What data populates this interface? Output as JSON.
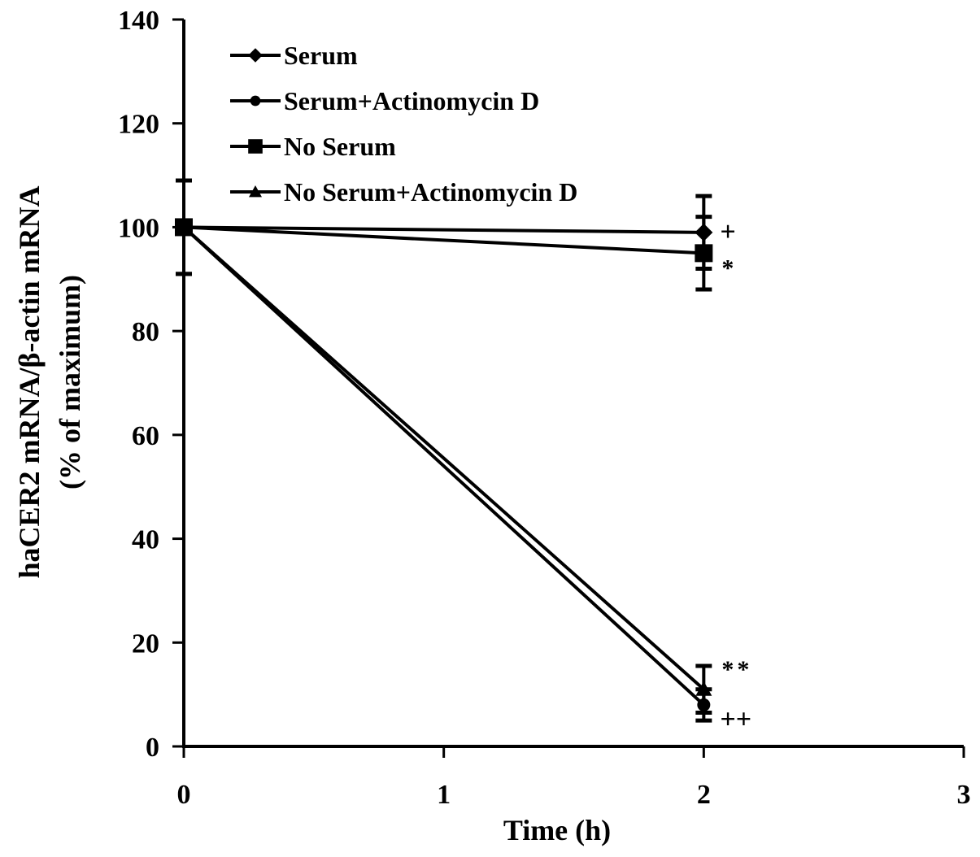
{
  "chart_data": {
    "type": "line",
    "title": "",
    "xlabel": "Time (h)",
    "ylabel": "haCER2 mRNA/β-actin mRNA",
    "ylabel2": "(% of maximum)",
    "xlim": [
      0,
      3
    ],
    "ylim": [
      0,
      140
    ],
    "xticks": [
      0,
      1,
      2,
      3
    ],
    "yticks": [
      0,
      20,
      40,
      60,
      80,
      100,
      120,
      140
    ],
    "grid": false,
    "legend_position": "top-left",
    "series": [
      {
        "name": "Serum",
        "marker": "diamond",
        "x": [
          0,
          2
        ],
        "y": [
          100,
          99
        ],
        "err": [
          9,
          7
        ]
      },
      {
        "name": "Serum+Actinomycin D",
        "marker": "circle",
        "x": [
          0,
          2
        ],
        "y": [
          100,
          8
        ],
        "err": [
          9,
          3
        ]
      },
      {
        "name": "No Serum",
        "marker": "square",
        "x": [
          0,
          2
        ],
        "y": [
          100,
          95
        ],
        "err": [
          1,
          7
        ]
      },
      {
        "name": "No Serum+Actinomycin D",
        "marker": "triangle",
        "x": [
          0,
          2
        ],
        "y": [
          100,
          11
        ],
        "err": [
          1,
          4.5
        ]
      }
    ],
    "annotations": [
      {
        "text": "+",
        "x": 2,
        "y": 99
      },
      {
        "text": "*",
        "x": 2,
        "y": 94
      },
      {
        "text": "**",
        "x": 2,
        "y": 11
      },
      {
        "text": "++",
        "x": 2,
        "y": 6.5
      }
    ]
  }
}
